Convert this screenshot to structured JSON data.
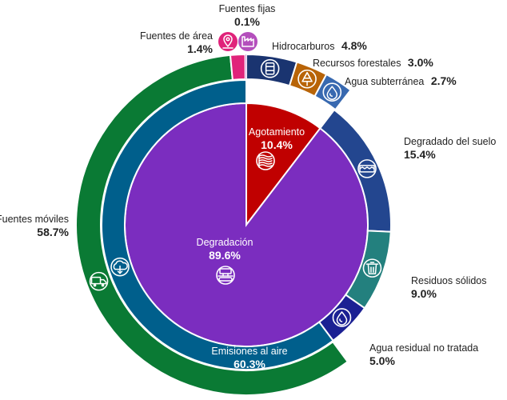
{
  "chart_data": {
    "type": "pie",
    "title": "",
    "rings": [
      {
        "ring": "inner",
        "slices": [
          {
            "label": "Agotamiento",
            "value": 10.4,
            "display": "10.4%",
            "color": "#c00000",
            "icon": "pollution-waves-icon"
          },
          {
            "label": "Degradación",
            "value": 89.6,
            "display": "89.6%",
            "color": "#7b2dbf",
            "icon": "factory-conveyor-icon"
          }
        ]
      },
      {
        "ring": "middle",
        "slices": [
          {
            "label": "",
            "value": 10.4,
            "color": "#ffffff"
          },
          {
            "label": "Degradado del suelo",
            "value": 15.4,
            "display": "15.4%",
            "color": "#23468f",
            "icon": "soil-layer-icon"
          },
          {
            "label": "Residuos sólidos",
            "value": 9.0,
            "display": "9.0%",
            "color": "#23807e",
            "icon": "trash-can-icon"
          },
          {
            "label": "Agua residual no tratada",
            "value": 5.0,
            "display": "5.0%",
            "color": "#1b2093",
            "icon": "water-drop-icon"
          },
          {
            "label": "Emisiones al aire",
            "value": 60.3,
            "display": "60.3%",
            "color": "#005f8c",
            "icon": "cloud-download-icon"
          }
        ]
      },
      {
        "ring": "outer",
        "slices": [
          {
            "label": "Hidrocarburos",
            "value": 4.8,
            "display": "4.8%",
            "color": "#1a3470",
            "icon": "oil-barrel-icon"
          },
          {
            "label": "Recursos forestales",
            "value": 3.0,
            "display": "3.0%",
            "color": "#b86407",
            "icon": "tree-icon"
          },
          {
            "label": "Agua subterránea",
            "value": 2.7,
            "display": "2.7%",
            "color": "#3869b0",
            "icon": "water-drop-icon"
          },
          {
            "label": "",
            "value": 29.4,
            "color": "#ffffff"
          },
          {
            "label": "Fuentes móviles",
            "value": 58.7,
            "display": "58.7%",
            "color": "#0a7a34",
            "icon": "truck-icon"
          },
          {
            "label": "Fuentes de área",
            "value": 1.4,
            "display": "1.4%",
            "color": "#e0237a",
            "icon": "map-pin-icon"
          },
          {
            "label": "Fuentes fijas",
            "value": 0.1,
            "display": "0.1%",
            "color": "#b44fbc",
            "icon": "factory-icon"
          }
        ]
      }
    ],
    "colors": {
      "ring_gap": "#ffffff",
      "icon_fill": "#ffffff"
    }
  }
}
